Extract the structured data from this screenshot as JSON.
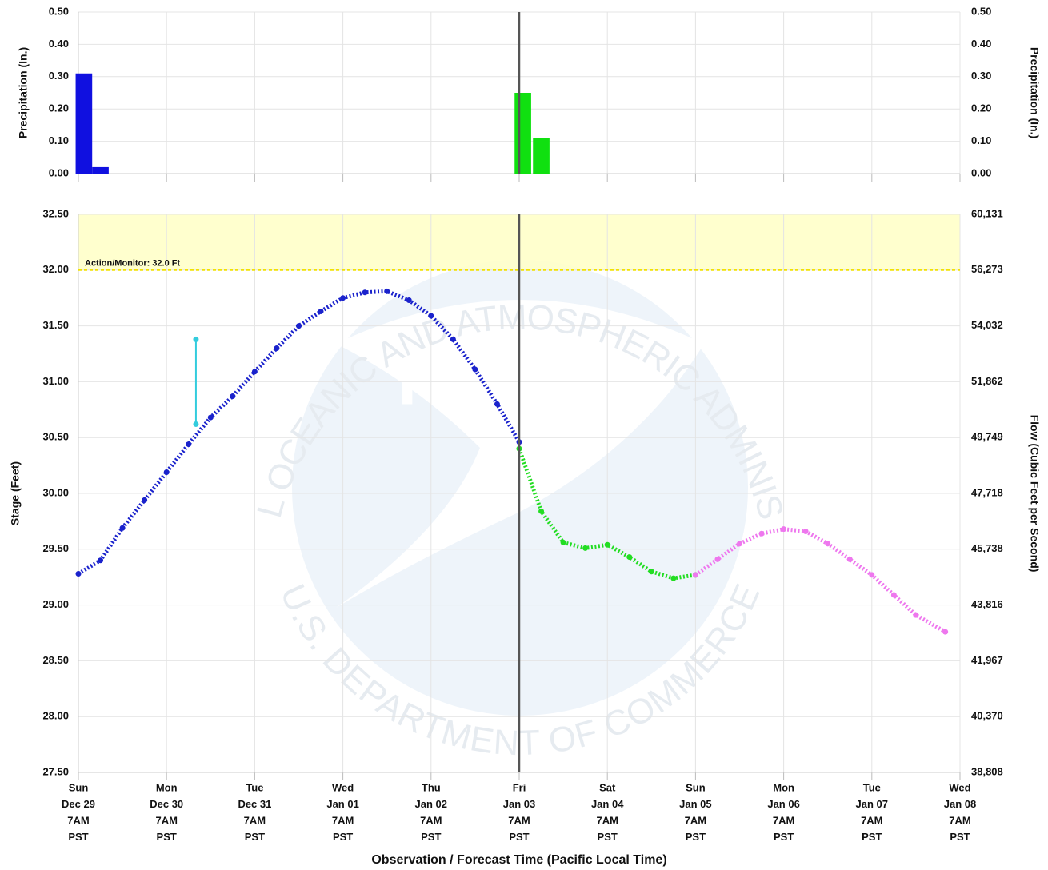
{
  "chart_data": [
    {
      "type": "bar",
      "ylabel": "Precipitation (In.)",
      "y2label": "Precipitation (In.)",
      "xlim": [
        0,
        240
      ],
      "xticks": [
        0,
        24,
        48,
        72,
        96,
        120,
        144,
        168,
        192,
        216,
        240
      ],
      "ylim": [
        0,
        0.5
      ],
      "yticks": [
        {
          "value": 0,
          "label": "0.00"
        },
        {
          "value": 0.1,
          "label": "0.10"
        },
        {
          "value": 0.2,
          "label": "0.20"
        },
        {
          "value": 0.3,
          "label": "0.30"
        },
        {
          "value": 0.4,
          "label": "0.40"
        },
        {
          "value": 0.5,
          "label": "0.50"
        }
      ],
      "grid": true,
      "now": 120,
      "bar_width": 4.5,
      "series": [
        {
          "color": "#1010e0",
          "x": [
            1.5,
            6
          ],
          "values": [
            0.31,
            0.02
          ]
        },
        {
          "color": "#10e010",
          "x": [
            121,
            126
          ],
          "values": [
            0.25,
            0.11
          ]
        }
      ]
    },
    {
      "type": "line",
      "ylabel": "Stage (Feet)",
      "y2label": "Flow (Cubic Feet per Second)",
      "xlabel": "Observation / Forecast Time (Pacific Local Time)",
      "xlim": [
        0,
        240
      ],
      "xticks": [
        {
          "value": 0,
          "label": [
            "Sun",
            "Dec 29",
            "7AM",
            "PST"
          ]
        },
        {
          "value": 24,
          "label": [
            "Mon",
            "Dec 30",
            "7AM",
            "PST"
          ]
        },
        {
          "value": 48,
          "label": [
            "Tue",
            "Dec 31",
            "7AM",
            "PST"
          ]
        },
        {
          "value": 72,
          "label": [
            "Wed",
            "Jan 01",
            "7AM",
            "PST"
          ]
        },
        {
          "value": 96,
          "label": [
            "Thu",
            "Jan 02",
            "7AM",
            "PST"
          ]
        },
        {
          "value": 120,
          "label": [
            "Fri",
            "Jan 03",
            "7AM",
            "PST"
          ]
        },
        {
          "value": 144,
          "label": [
            "Sat",
            "Jan 04",
            "7AM",
            "PST"
          ]
        },
        {
          "value": 168,
          "label": [
            "Sun",
            "Jan 05",
            "7AM",
            "PST"
          ]
        },
        {
          "value": 192,
          "label": [
            "Mon",
            "Jan 06",
            "7AM",
            "PST"
          ]
        },
        {
          "value": 216,
          "label": [
            "Tue",
            "Jan 07",
            "7AM",
            "PST"
          ]
        },
        {
          "value": 240,
          "label": [
            "Wed",
            "Jan 08",
            "7AM",
            "PST"
          ]
        }
      ],
      "ylim": [
        27.5,
        32.5
      ],
      "yticks": [
        {
          "value": 27.5,
          "label": "27.50"
        },
        {
          "value": 28,
          "label": "28.00"
        },
        {
          "value": 28.5,
          "label": "28.50"
        },
        {
          "value": 29,
          "label": "29.00"
        },
        {
          "value": 29.5,
          "label": "29.50"
        },
        {
          "value": 30,
          "label": "30.00"
        },
        {
          "value": 30.5,
          "label": "30.50"
        },
        {
          "value": 31,
          "label": "31.00"
        },
        {
          "value": 31.5,
          "label": "31.50"
        },
        {
          "value": 32,
          "label": "32.00"
        },
        {
          "value": 32.5,
          "label": "32.50"
        }
      ],
      "y2ticks": [
        {
          "value": 38808,
          "label": "38,808"
        },
        {
          "value": 40370,
          "label": "40,370"
        },
        {
          "value": 41967,
          "label": "41,967"
        },
        {
          "value": 43816,
          "label": "43,816"
        },
        {
          "value": 45738,
          "label": "45,738"
        },
        {
          "value": 47718,
          "label": "47,718"
        },
        {
          "value": 49749,
          "label": "49,749"
        },
        {
          "value": 51862,
          "label": "51,862"
        },
        {
          "value": 54032,
          "label": "54,032"
        },
        {
          "value": 56273,
          "label": "56,273"
        },
        {
          "value": 60131,
          "label": "60,131"
        }
      ],
      "grid": true,
      "now": 120,
      "threshold": {
        "label": "Action/Monitor: 32.0 Ft",
        "value": 32,
        "color": "#f2e200",
        "band": "#ffffc6"
      },
      "watermark": {
        "center": "NOAA",
        "top": "NATIONAL OCEANIC AND ATMOSPHERIC ADMINISTRATION",
        "bottom": "U.S. DEPARTMENT OF COMMERCE"
      },
      "series": [
        {
          "color": "#33ccdd",
          "x": [
            32,
            32
          ],
          "values": [
            30.62,
            31.38
          ]
        },
        {
          "color": "#1a22cc",
          "x": [
            0,
            6,
            12,
            18,
            24,
            30,
            36,
            42,
            48,
            54,
            60,
            66,
            72,
            78,
            84,
            90,
            96,
            102,
            108,
            114,
            120
          ],
          "values": [
            29.28,
            29.4,
            29.69,
            29.94,
            30.19,
            30.44,
            30.68,
            30.87,
            31.09,
            31.3,
            31.5,
            31.63,
            31.75,
            31.8,
            31.81,
            31.73,
            31.59,
            31.38,
            31.11,
            30.8,
            30.46
          ]
        },
        {
          "color": "#22dd22",
          "x": [
            120,
            126,
            132,
            138,
            144,
            150,
            156,
            162,
            168
          ],
          "values": [
            30.4,
            29.84,
            29.56,
            29.51,
            29.54,
            29.43,
            29.3,
            29.24,
            29.27
          ]
        },
        {
          "color": "#ee77ee",
          "x": [
            168,
            174,
            180,
            186,
            192,
            198,
            204,
            210,
            216,
            222,
            228,
            236
          ],
          "values": [
            29.27,
            29.41,
            29.55,
            29.64,
            29.68,
            29.66,
            29.55,
            29.41,
            29.27,
            29.09,
            28.91,
            28.76
          ]
        }
      ]
    }
  ]
}
